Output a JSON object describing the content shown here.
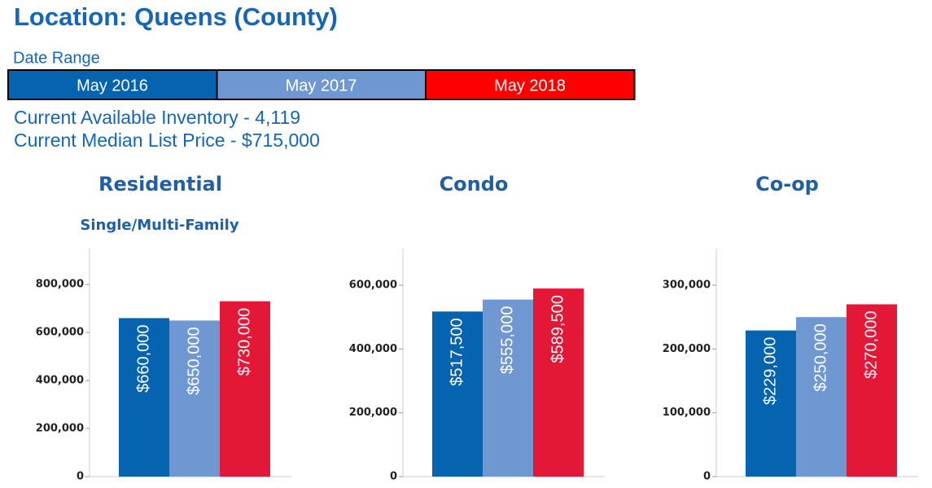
{
  "title": "Location: Queens (County)",
  "date_range": {
    "label": "Date Range",
    "items": [
      {
        "name": "May 2016",
        "color": "#0563b0"
      },
      {
        "name": "May 2017",
        "color": "#6f98d3"
      },
      {
        "name": "May 2018",
        "color": "#ff0000"
      }
    ]
  },
  "inventory": "Current Available Inventory - 4,119",
  "median_price": "Current Median List Price - $715,000",
  "chart_data": [
    {
      "type": "bar",
      "title": "Residential",
      "subtitle": "Single/Multi-Family",
      "values": [
        660000,
        650000,
        730000
      ],
      "value_labels": [
        "$660,000",
        "$650,000",
        "$730,000"
      ],
      "colors": [
        "#0563b0",
        "#6f98d3",
        "#e31837"
      ],
      "ylim": [
        0,
        950000
      ],
      "yticks": [
        0,
        {
          "value": 200000,
          "label": "200,000"
        },
        {
          "value": 400000,
          "label": "400,000"
        },
        {
          "value": 600000,
          "label": "600,000"
        },
        {
          "value": 800000,
          "label": "800,000"
        }
      ]
    },
    {
      "type": "bar",
      "title": "Condo",
      "values": [
        517500,
        555000,
        589500
      ],
      "value_labels": [
        "$517,500",
        "$555,000",
        "$589,500"
      ],
      "colors": [
        "#0563b0",
        "#6f98d3",
        "#e31837"
      ],
      "ylim": [
        0,
        715000
      ],
      "yticks": [
        0,
        {
          "value": 200000,
          "label": "200,000"
        },
        {
          "value": 400000,
          "label": "400,000"
        },
        {
          "value": 600000,
          "label": "600,000"
        }
      ]
    },
    {
      "type": "bar",
      "title": "Co-op",
      "values": [
        229000,
        250000,
        270000
      ],
      "value_labels": [
        "$229,000",
        "$250,000",
        "$270,000"
      ],
      "colors": [
        "#0563b0",
        "#6f98d3",
        "#e31837"
      ],
      "ylim": [
        0,
        357500
      ],
      "yticks": [
        0,
        {
          "value": 100000,
          "label": "100,000"
        },
        {
          "value": 200000,
          "label": "200,000"
        },
        {
          "value": 300000,
          "label": "300,000"
        }
      ]
    }
  ]
}
